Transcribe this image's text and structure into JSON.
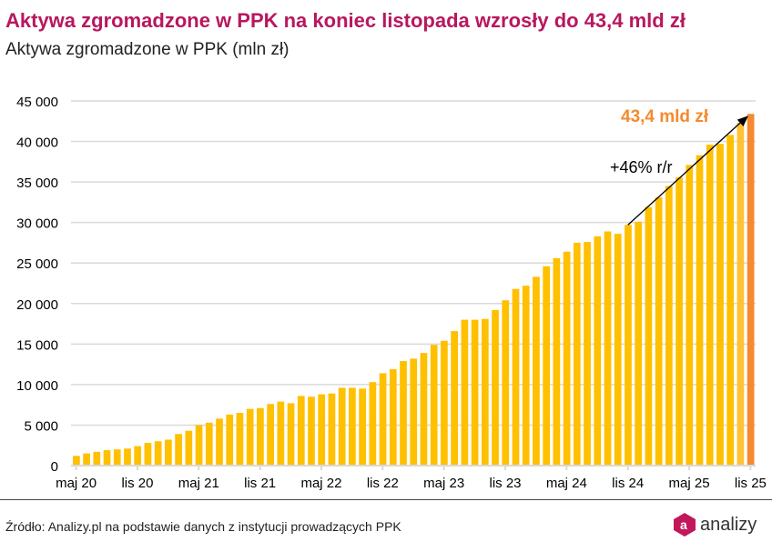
{
  "title": "Aktywa zgromadzone w PPK na koniec listopada wzrosły do 43,4 mld zł",
  "subtitle": "Aktywa zgromadzone w PPK (mln zł)",
  "source": "Źródło: Analizy.pl na podstawie danych z instytucji prowadzących PPK",
  "logo": "analizy",
  "colors": {
    "bar": "#FFC000",
    "prev_bar": "#FFC234",
    "last_bar": "#F58A2E",
    "title": "#B8175E",
    "annotation": "#F58A2E"
  },
  "chart_data": {
    "type": "bar",
    "ylim": [
      0,
      45000
    ],
    "yticks": [
      "0",
      "5 000",
      "10 000",
      "15 000",
      "20 000",
      "25 000",
      "30 000",
      "35 000",
      "40 000",
      "45 000"
    ],
    "xtick_labels": [
      "maj 20",
      "lis 20",
      "maj 21",
      "lis 21",
      "maj 22",
      "lis 22",
      "maj 23",
      "lis 23",
      "maj 24",
      "lis 24",
      "maj 25",
      "lis 25"
    ],
    "grid": true,
    "values": [
      1200,
      1500,
      1700,
      1900,
      2000,
      2100,
      2400,
      2800,
      3000,
      3200,
      3900,
      4300,
      5000,
      5300,
      5800,
      6300,
      6500,
      7000,
      7100,
      7600,
      7900,
      7700,
      8600,
      8500,
      8800,
      8900,
      9600,
      9600,
      9500,
      10300,
      11400,
      11900,
      12900,
      13200,
      13900,
      14900,
      15400,
      16600,
      18000,
      18000,
      18100,
      19200,
      20400,
      21800,
      22200,
      23300,
      24600,
      25600,
      26400,
      27500,
      27600,
      28300,
      28900,
      28600,
      29700,
      30100,
      31900,
      33100,
      34500,
      35600,
      37100,
      38300,
      39600,
      39700,
      40800,
      42300,
      43400
    ],
    "annotations": {
      "last_value": "43,4 mld zł",
      "growth": "+46% r/r"
    }
  }
}
